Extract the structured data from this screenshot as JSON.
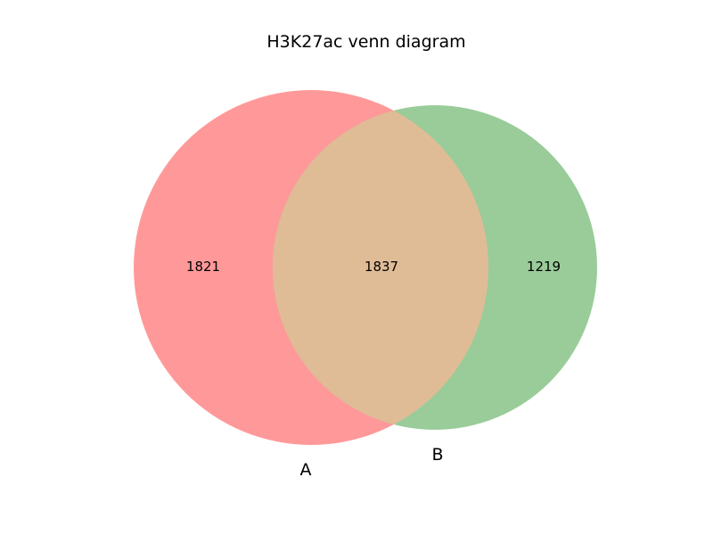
{
  "title": "H3K27ac venn diagram",
  "sets": {
    "a": {
      "label": "A",
      "color": "#ff9999",
      "only_count": "1821"
    },
    "b": {
      "label": "B",
      "color": "#99cc99",
      "only_count": "1219"
    }
  },
  "intersection": {
    "count": "1837",
    "color": "#e0bc96"
  }
}
